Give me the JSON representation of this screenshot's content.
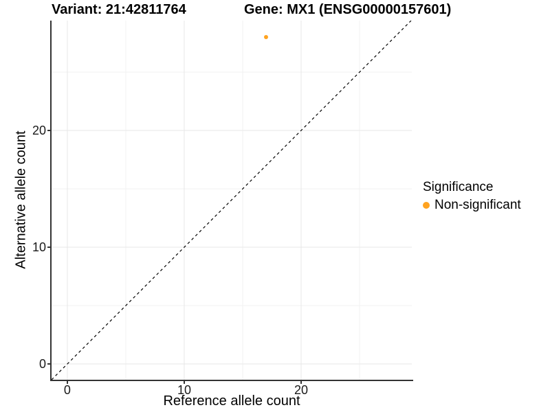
{
  "header": {
    "title_left": "Variant: 21:42811764",
    "title_right": "Gene: MX1 (ENSG00000157601)"
  },
  "chart_data": {
    "type": "scatter",
    "title": "Variant: 21:42811764   Gene: MX1 (ENSG00000157601)",
    "xlabel": "Reference allele count",
    "ylabel": "Alternative allele count",
    "points": [
      {
        "x": 17,
        "y": 28,
        "series": "Non-significant"
      }
    ],
    "series": [
      {
        "name": "Non-significant",
        "color": "#FFA320",
        "point_radius": 3
      }
    ],
    "xlim": [
      -1.35,
      29.47
    ],
    "ylim": [
      -1.35,
      29.41
    ],
    "xticks": [
      0,
      10,
      20
    ],
    "yticks": [
      0,
      10,
      20
    ],
    "xminor": [
      5,
      15,
      25
    ],
    "yminor": [
      5,
      15,
      25
    ],
    "grid": true,
    "grid_major_color": "#e7e7e7",
    "grid_minor_color": "#f2f2f2",
    "identity_line": {
      "slope": 1,
      "intercept": 0,
      "dashed": true,
      "color": "#000000"
    },
    "legend": {
      "title": "Significance",
      "position": "right",
      "items": [
        {
          "label": "Non-significant",
          "color": "#FFA320"
        }
      ]
    }
  },
  "colors": {
    "axis_line": "#333333",
    "tick_text": "#1a1a1a",
    "background": "#ffffff",
    "point": "#FFA320"
  }
}
